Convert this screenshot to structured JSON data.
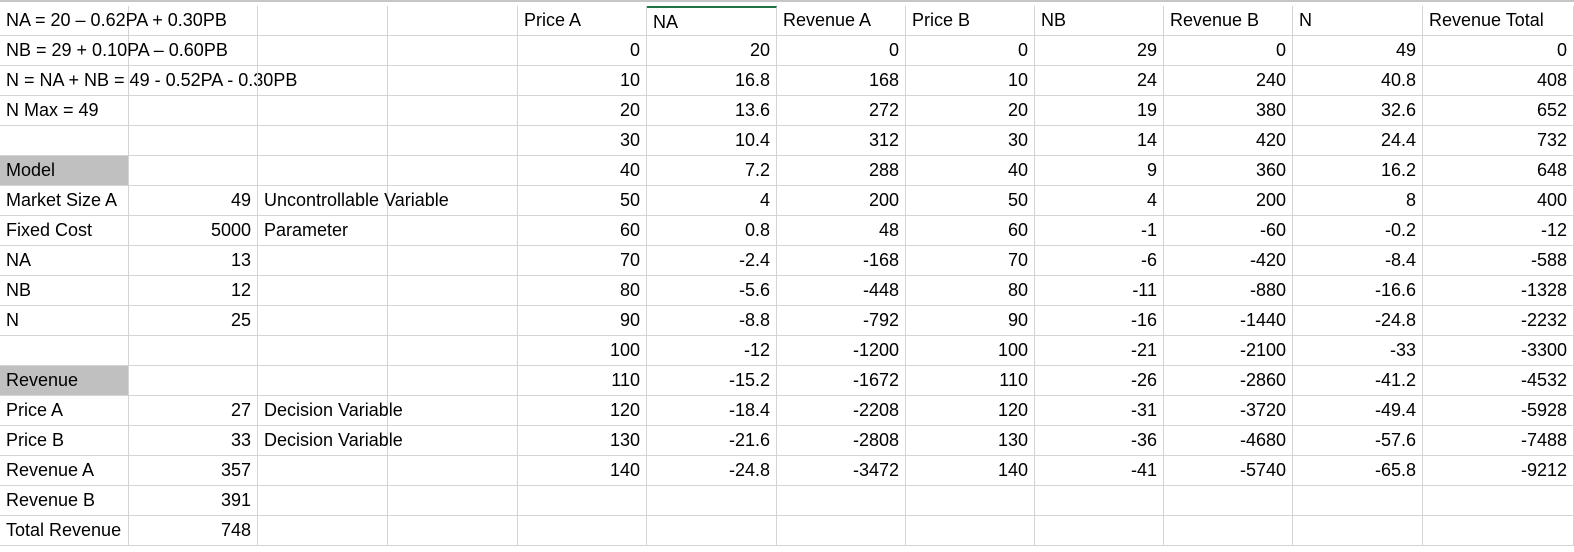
{
  "sheet": {
    "rows": [
      [
        "NA = 20 – 0.62PA + 0.30PB",
        "",
        "",
        "",
        "Price A",
        "NA",
        "Revenue A",
        "Price B",
        "NB",
        "Revenue B",
        "N",
        "Revenue  Total"
      ],
      [
        "NB = 29 + 0.10PA – 0.60PB",
        "",
        "",
        "",
        "0",
        "20",
        "0",
        "0",
        "29",
        "0",
        "49",
        "0"
      ],
      [
        "N = NA + NB =  49 - 0.52PA - 0.30PB",
        "",
        "",
        "",
        "10",
        "16.8",
        "168",
        "10",
        "24",
        "240",
        "40.8",
        "408"
      ],
      [
        "N Max = 49",
        "",
        "",
        "",
        "20",
        "13.6",
        "272",
        "20",
        "19",
        "380",
        "32.6",
        "652"
      ],
      [
        "",
        "",
        "",
        "",
        "30",
        "10.4",
        "312",
        "30",
        "14",
        "420",
        "24.4",
        "732"
      ],
      [
        "Model",
        "",
        "",
        "",
        "40",
        "7.2",
        "288",
        "40",
        "9",
        "360",
        "16.2",
        "648"
      ],
      [
        "Market Size A",
        "49",
        "Uncontrollable Variable",
        "",
        "50",
        "4",
        "200",
        "50",
        "4",
        "200",
        "8",
        "400"
      ],
      [
        "Fixed Cost",
        "5000",
        "Parameter",
        "",
        "60",
        "0.8",
        "48",
        "60",
        "-1",
        "-60",
        "-0.2",
        "-12"
      ],
      [
        "NA",
        "13",
        "",
        "",
        "70",
        "-2.4",
        "-168",
        "70",
        "-6",
        "-420",
        "-8.4",
        "-588"
      ],
      [
        "NB",
        "12",
        "",
        "",
        "80",
        "-5.6",
        "-448",
        "80",
        "-11",
        "-880",
        "-16.6",
        "-1328"
      ],
      [
        "N",
        "25",
        "",
        "",
        "90",
        "-8.8",
        "-792",
        "90",
        "-16",
        "-1440",
        "-24.8",
        "-2232"
      ],
      [
        "",
        "",
        "",
        "",
        "100",
        "-12",
        "-1200",
        "100",
        "-21",
        "-2100",
        "-33",
        "-3300"
      ],
      [
        "Revenue",
        "",
        "",
        "",
        "110",
        "-15.2",
        "-1672",
        "110",
        "-26",
        "-2860",
        "-41.2",
        "-4532"
      ],
      [
        "Price A",
        "27",
        "Decision Variable",
        "",
        "120",
        "-18.4",
        "-2208",
        "120",
        "-31",
        "-3720",
        "-49.4",
        "-5928"
      ],
      [
        "Price B",
        "33",
        "Decision Variable",
        "",
        "130",
        "-21.6",
        "-2808",
        "130",
        "-36",
        "-4680",
        "-57.6",
        "-7488"
      ],
      [
        "Revenue A",
        "357",
        "",
        "",
        "140",
        "-24.8",
        "-3472",
        "140",
        "-41",
        "-5740",
        "-65.8",
        "-9212"
      ],
      [
        "Revenue B",
        "391",
        "",
        "",
        "",
        "",
        "",
        "",
        "",
        "",
        "",
        ""
      ],
      [
        "Total Revenue",
        "748",
        "",
        "",
        "",
        "",
        "",
        "",
        "",
        "",
        "",
        ""
      ]
    ],
    "header_cells": [
      [
        5,
        0
      ],
      [
        12,
        0
      ]
    ],
    "colors": {
      "grid": "#d4d4d4",
      "header_fill": "#c0c0c0",
      "selection": "#217346"
    }
  }
}
